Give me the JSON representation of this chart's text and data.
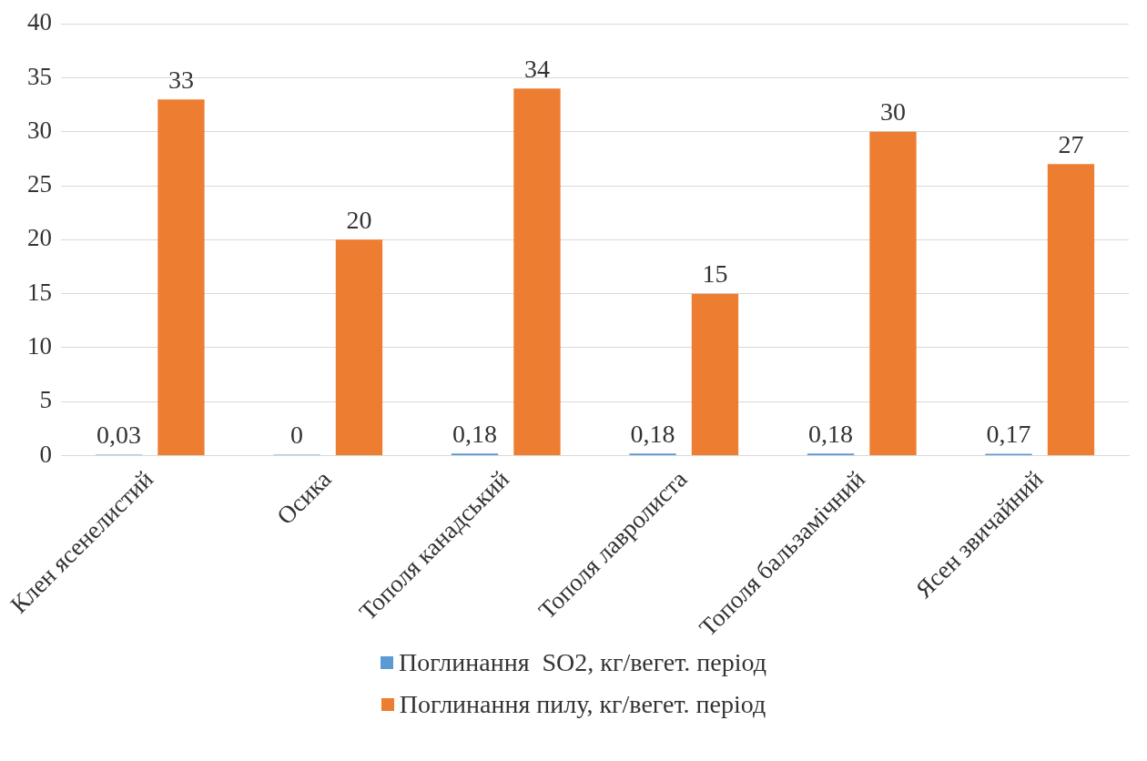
{
  "chart_data": {
    "type": "bar",
    "categories": [
      "Клен ясенелистий",
      "Осика",
      "Тополя канадський",
      "Тополя лавролиста",
      "Тополя бальзамічний",
      "Ясен звичайний"
    ],
    "series": [
      {
        "name": "Поглинання  SO2, кг/вегет. період",
        "color": "#5b9bd5",
        "values": [
          0.03,
          0,
          0.18,
          0.18,
          0.18,
          0.17
        ],
        "value_labels": [
          "0,03",
          "0",
          "0,18",
          "0,18",
          "0,18",
          "0,17"
        ]
      },
      {
        "name": "Поглинання пилу, кг/вегет. період",
        "color": "#ed7d31",
        "values": [
          33,
          20,
          34,
          15,
          30,
          27
        ],
        "value_labels": [
          "33",
          "20",
          "34",
          "15",
          "30",
          "27"
        ]
      }
    ],
    "ylim": [
      0,
      40
    ],
    "yticks": [
      0,
      5,
      10,
      15,
      20,
      25,
      30,
      35,
      40
    ],
    "grid": "y",
    "legend": "bottom"
  }
}
